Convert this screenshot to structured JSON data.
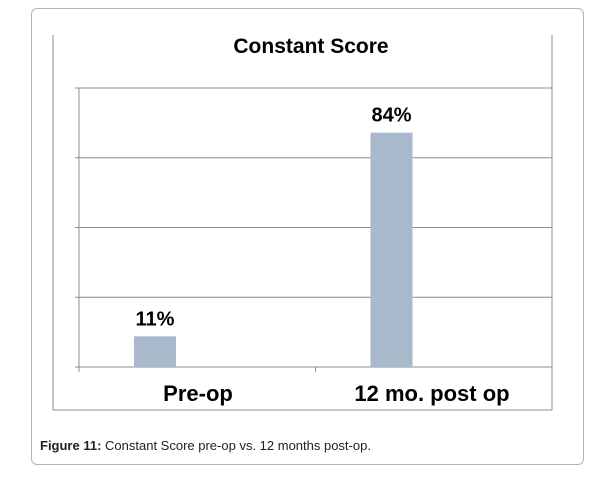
{
  "chart_data": {
    "type": "bar",
    "title": "Constant Score",
    "categories": [
      "Pre-op",
      "12 mo. post op"
    ],
    "values": [
      11,
      84
    ],
    "data_labels": [
      "11%",
      "84%"
    ],
    "ylim": [
      0,
      100
    ],
    "xlabel": "",
    "ylabel": "",
    "grid": true,
    "bar_color": "#a9b9cc"
  },
  "caption": {
    "label": "Figure 11:",
    "text": " Constant Score pre-op vs. 12 months post-op."
  }
}
